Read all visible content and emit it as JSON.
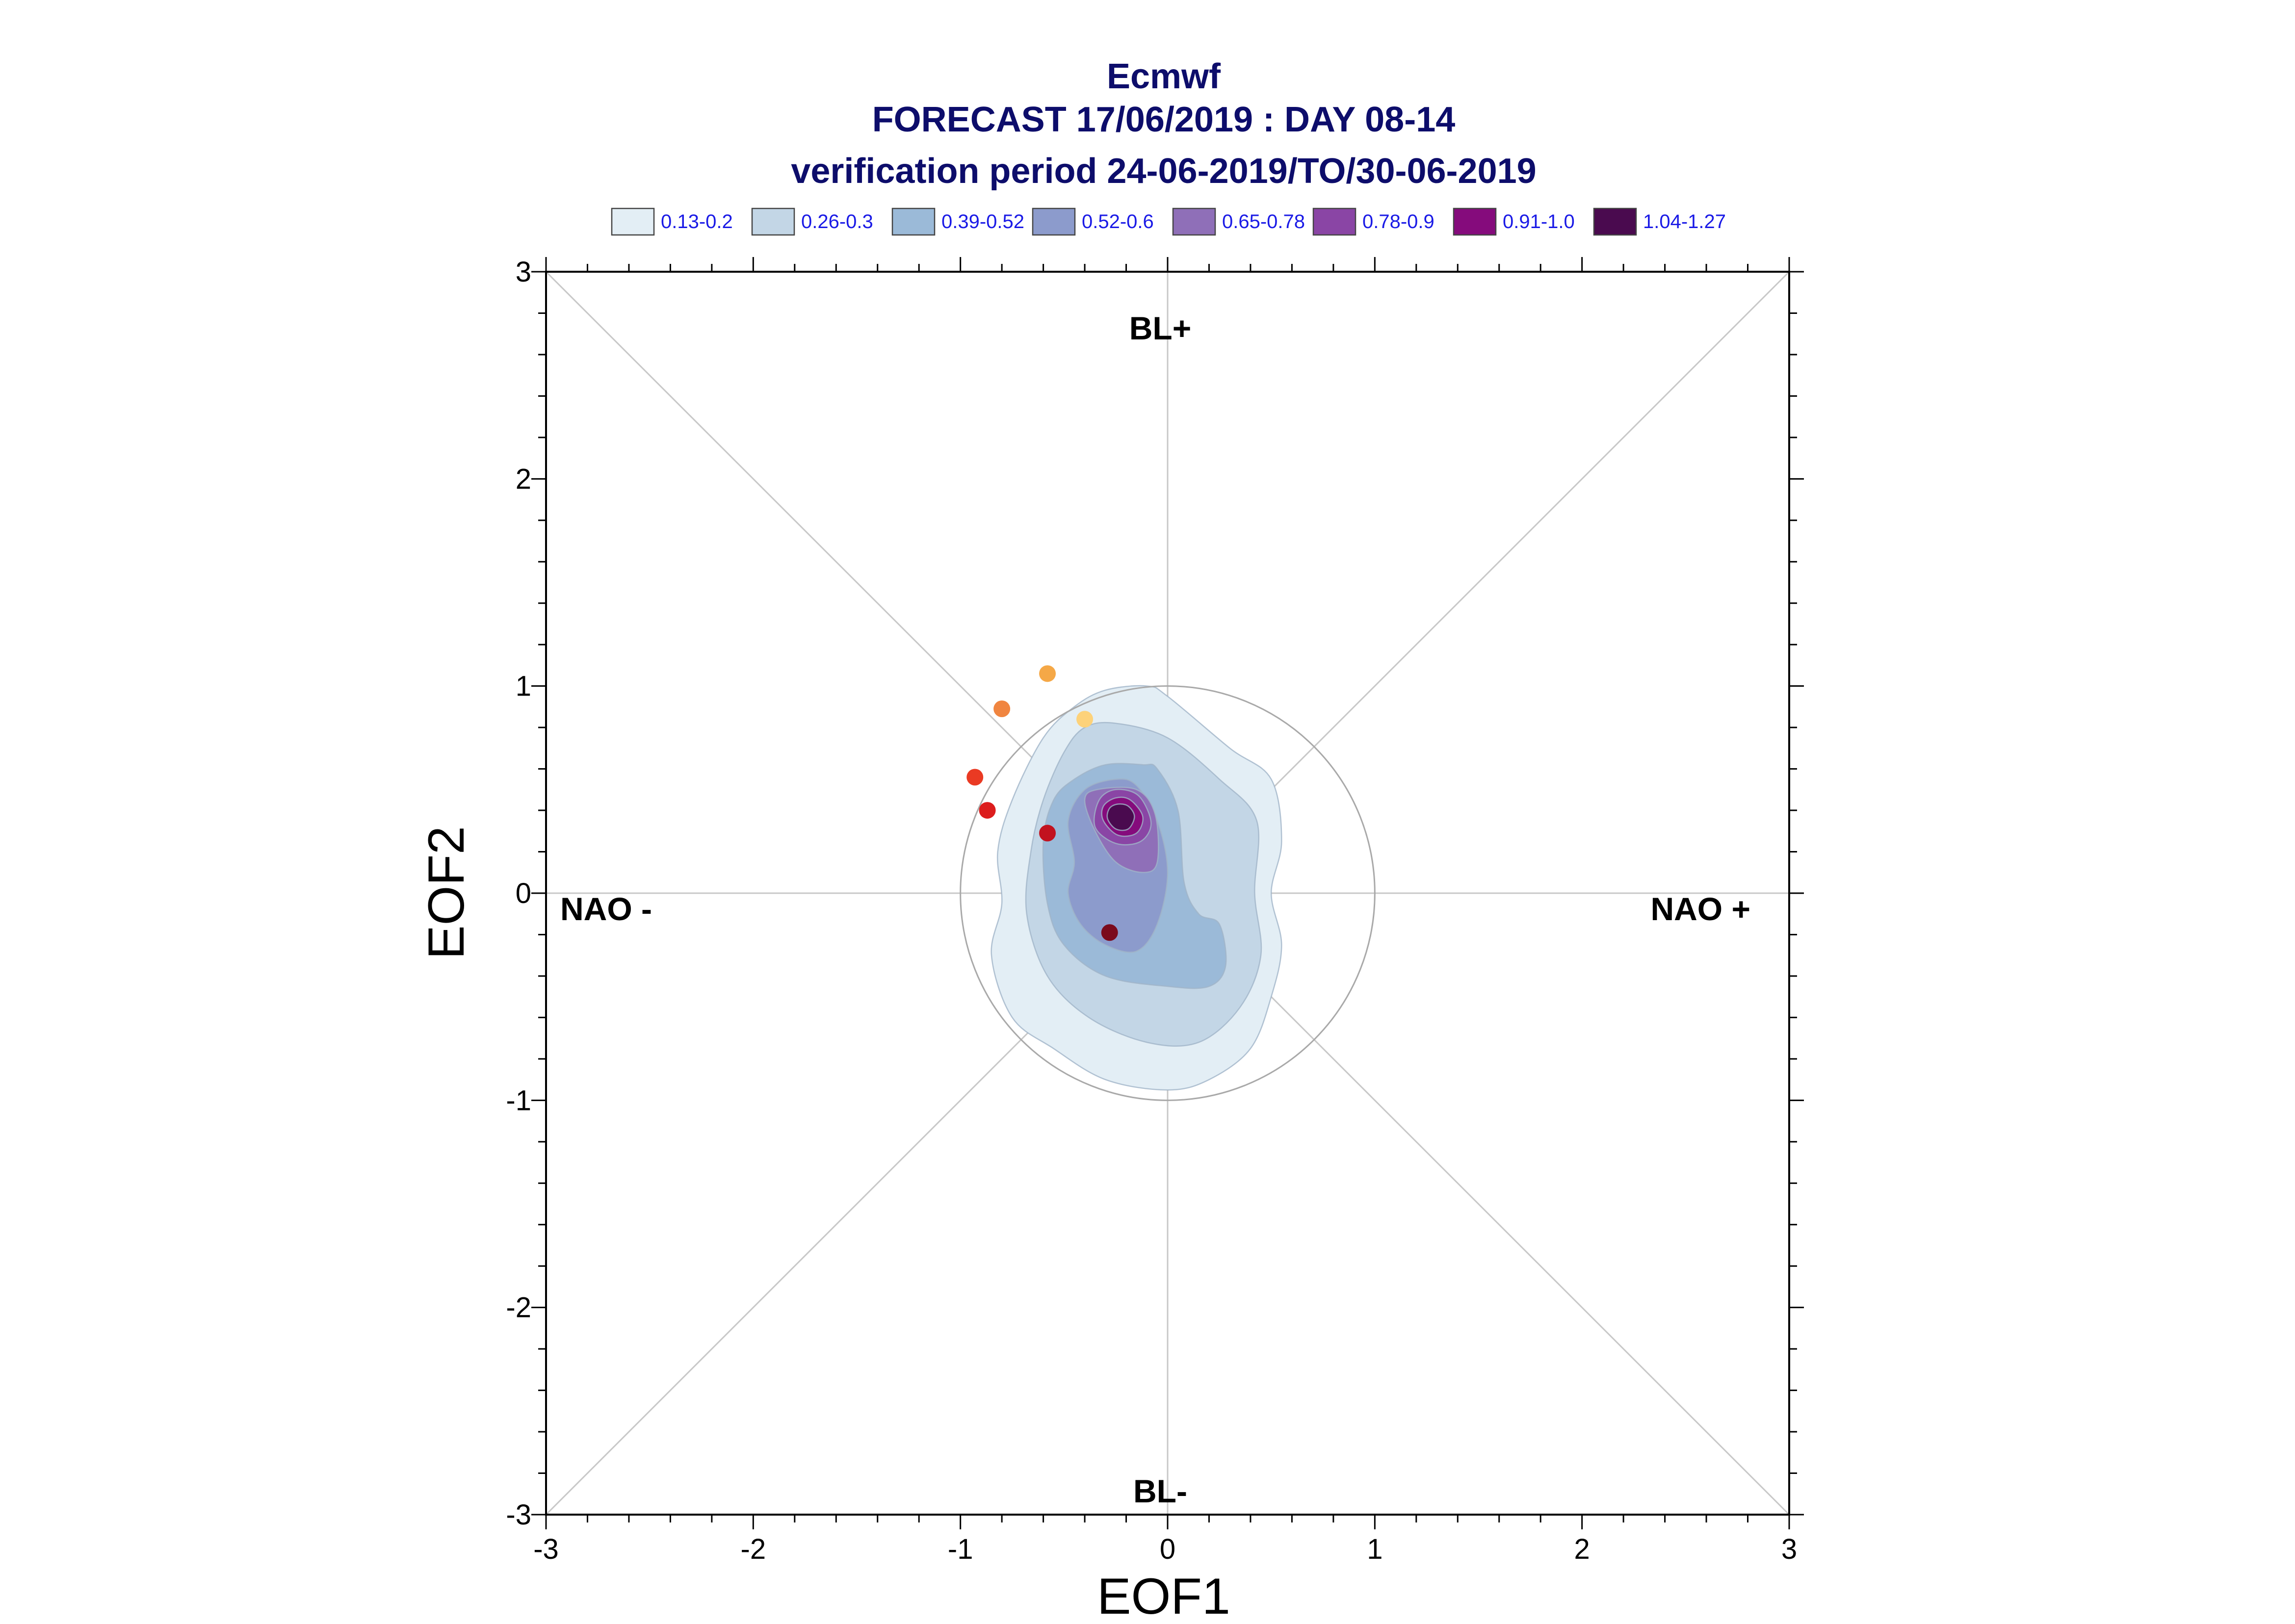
{
  "chart_data": {
    "type": "scatter",
    "title": [
      "Ecmwf",
      "FORECAST 17/06/2019 : DAY 08-14",
      "verification period 24-06-2019/TO/30-06-2019"
    ],
    "xlabel": "EOF1",
    "ylabel": "EOF2",
    "xlim": [
      -3,
      3
    ],
    "ylim": [
      -3,
      3
    ],
    "xticks": [
      "-3",
      "-2",
      "-1",
      "0",
      "1",
      "2",
      "3"
    ],
    "yticks": [
      "-3",
      "-2",
      "-1",
      "0",
      "1",
      "2",
      "3"
    ],
    "grid": false,
    "reference_lines": "x=0, y=0 and both diagonals",
    "reference_circle_radius": 1,
    "legend_position": "top",
    "legend": [
      {
        "label": "0.13-0.2",
        "color": "#e3eef5"
      },
      {
        "label": "0.26-0.3",
        "color": "#c3d6e6"
      },
      {
        "label": "0.39-0.52",
        "color": "#9bbad8"
      },
      {
        "label": "0.52-0.6",
        "color": "#8c9bcc"
      },
      {
        "label": "0.65-0.78",
        "color": "#8f6fb8"
      },
      {
        "label": "0.78-0.9",
        "color": "#8a45a5"
      },
      {
        "label": "0.91-1.0",
        "color": "#850b7c"
      },
      {
        "label": "1.04-1.27",
        "color": "#4a0a4f"
      }
    ],
    "regime_labels": {
      "top": "BL+",
      "bottom": "BL-",
      "left": "NAO -",
      "right": "NAO +"
    },
    "density_contours": [
      {
        "level": "0.13-0.2",
        "color": "#e3eef5",
        "x": [
          0.0,
          0.3,
          0.5,
          0.55,
          0.5,
          0.55,
          0.5,
          0.4,
          0.2,
          0.0,
          -0.3,
          -0.55,
          -0.75,
          -0.85,
          -0.8,
          -0.82,
          -0.75,
          -0.6,
          -0.45,
          -0.3,
          -0.1
        ],
        "y": [
          0.95,
          0.7,
          0.55,
          0.25,
          0.0,
          -0.25,
          -0.5,
          -0.75,
          -0.9,
          -0.95,
          -0.9,
          -0.75,
          -0.6,
          -0.3,
          -0.05,
          0.2,
          0.45,
          0.75,
          0.9,
          0.98,
          1.0
        ]
      },
      {
        "level": "0.26-0.3",
        "color": "#c3d6e6",
        "x": [
          0.0,
          0.25,
          0.43,
          0.42,
          0.45,
          0.35,
          0.15,
          -0.1,
          -0.38,
          -0.58,
          -0.68,
          -0.66,
          -0.6,
          -0.5,
          -0.4,
          -0.25
        ],
        "y": [
          0.75,
          0.55,
          0.35,
          0.0,
          -0.3,
          -0.55,
          -0.72,
          -0.72,
          -0.6,
          -0.4,
          -0.1,
          0.2,
          0.45,
          0.68,
          0.8,
          0.82
        ]
      },
      {
        "level": "0.39-0.52",
        "color": "#9bbad8",
        "x": [
          -0.05,
          0.05,
          0.08,
          0.15,
          0.25,
          0.28,
          0.2,
          0.0,
          -0.3,
          -0.5,
          -0.58,
          -0.6,
          -0.55,
          -0.45,
          -0.3,
          -0.12
        ],
        "y": [
          0.6,
          0.4,
          0.05,
          -0.1,
          -0.15,
          -0.35,
          -0.45,
          -0.45,
          -0.4,
          -0.25,
          -0.05,
          0.25,
          0.45,
          0.55,
          0.62,
          0.62
        ]
      },
      {
        "level": "0.52-0.6",
        "color": "#8c9bcc",
        "x": [
          -0.15,
          -0.05,
          0.0,
          -0.05,
          -0.15,
          -0.3,
          -0.42,
          -0.48,
          -0.45,
          -0.48,
          -0.4,
          -0.25
        ],
        "y": [
          0.52,
          0.35,
          0.1,
          -0.15,
          -0.28,
          -0.25,
          -0.15,
          0.0,
          0.15,
          0.35,
          0.5,
          0.55
        ]
      },
      {
        "level": "0.65-0.78",
        "color": "#8f6fb8",
        "x": [
          -0.15,
          -0.06,
          -0.05,
          -0.12,
          -0.25,
          -0.35,
          -0.4,
          -0.34
        ],
        "y": [
          0.5,
          0.38,
          0.15,
          0.1,
          0.15,
          0.3,
          0.45,
          0.5
        ]
      },
      {
        "level": "0.78-0.9",
        "color": "#8a45a5",
        "x": [
          -0.14,
          -0.08,
          -0.13,
          -0.25,
          -0.35,
          -0.33,
          -0.25
        ],
        "y": [
          0.47,
          0.34,
          0.25,
          0.24,
          0.32,
          0.45,
          0.5
        ]
      },
      {
        "level": "0.91-1.0",
        "color": "#850b7c",
        "x": [
          -0.18,
          -0.12,
          -0.15,
          -0.24,
          -0.31,
          -0.31,
          -0.25
        ],
        "y": [
          0.45,
          0.37,
          0.29,
          0.28,
          0.35,
          0.42,
          0.46
        ]
      },
      {
        "level": "1.04-1.27",
        "color": "#4a0a4f",
        "x": [
          -0.19,
          -0.16,
          -0.19,
          -0.25,
          -0.29,
          -0.28,
          -0.24
        ],
        "y": [
          0.42,
          0.37,
          0.31,
          0.31,
          0.36,
          0.41,
          0.43
        ]
      }
    ],
    "series": [
      {
        "x": [
          -0.58,
          -0.8,
          -0.4,
          -0.93,
          -0.87,
          -0.58,
          -0.28
        ],
        "y": [
          1.06,
          0.89,
          0.84,
          0.56,
          0.4,
          0.29,
          -0.19
        ],
        "colors": [
          "#f5a847",
          "#f08540",
          "#fdd27a",
          "#ea3a23",
          "#dc1d1d",
          "#c2121f",
          "#7b0a1d"
        ]
      }
    ]
  }
}
